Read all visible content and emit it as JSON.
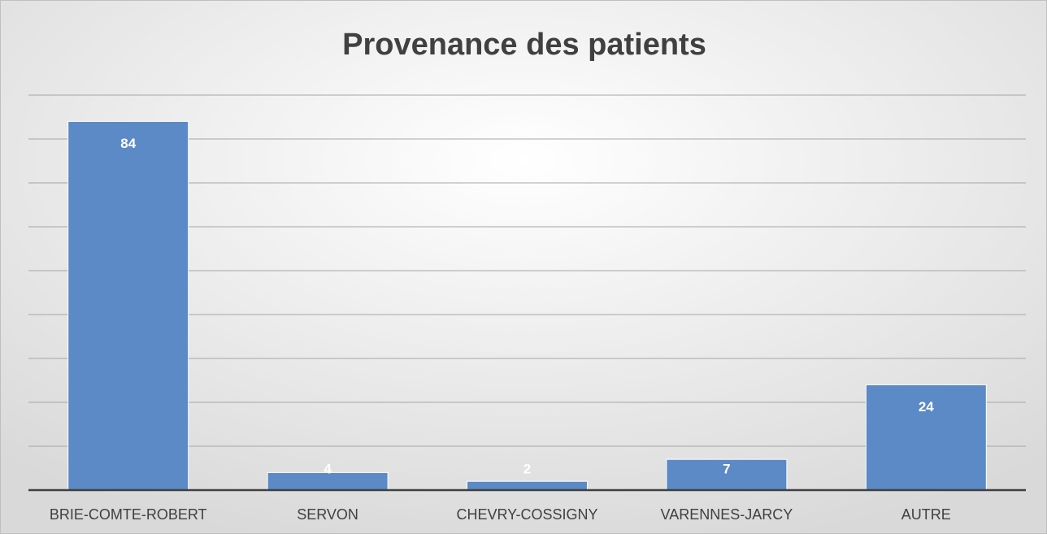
{
  "chart_data": {
    "type": "bar",
    "title": "Provenance des patients",
    "categories": [
      "BRIE-COMTE-ROBERT",
      "SERVON",
      "CHEVRY-COSSIGNY",
      "VARENNES-JARCY",
      "AUTRE"
    ],
    "values": [
      84,
      4,
      2,
      7,
      24
    ],
    "color": "#5b8ac6",
    "ylim": [
      0,
      90
    ],
    "yticks": [
      0,
      10,
      20,
      30,
      40,
      50,
      60,
      70,
      80,
      90
    ],
    "grid": true
  }
}
